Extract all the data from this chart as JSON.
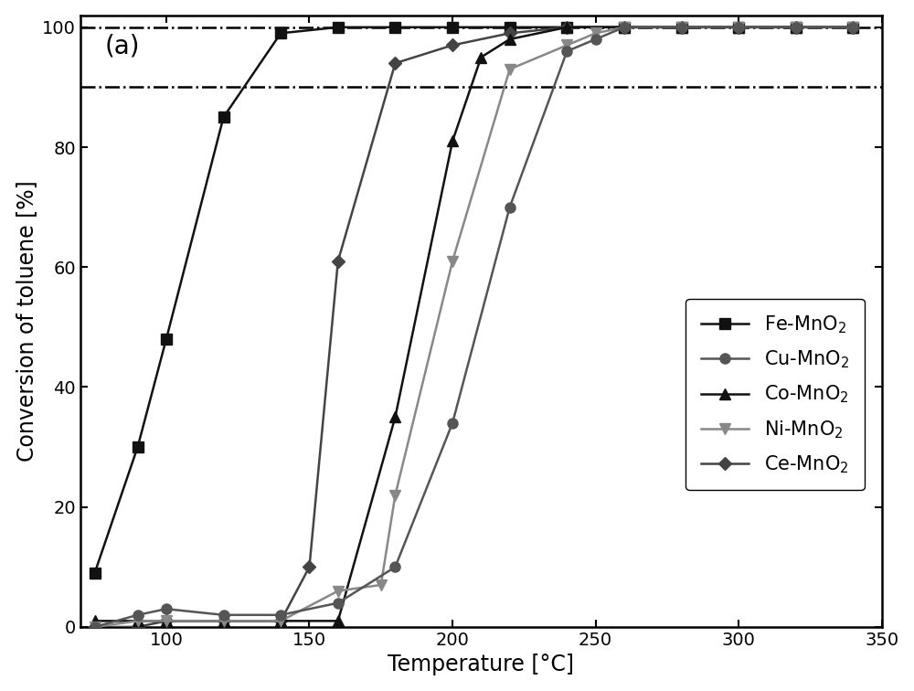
{
  "title_label": "(a)",
  "xlabel": "Temperature [°C]",
  "ylabel": "Conversion of toluene [%]",
  "xlim": [
    70,
    350
  ],
  "ylim": [
    0,
    102
  ],
  "xticks": [
    100,
    150,
    200,
    250,
    300,
    350
  ],
  "yticks": [
    0,
    20,
    40,
    60,
    80,
    100
  ],
  "hlines": [
    100,
    90
  ],
  "series": [
    {
      "label": "Fe-MnO$_2$",
      "color": "#111111",
      "marker": "s",
      "markersize": 8,
      "linewidth": 1.8,
      "x": [
        75,
        90,
        100,
        120,
        140,
        160,
        180,
        200,
        220,
        240,
        260,
        280,
        300,
        320,
        340
      ],
      "y": [
        9,
        30,
        48,
        85,
        99,
        100,
        100,
        100,
        100,
        100,
        100,
        100,
        100,
        100,
        100
      ]
    },
    {
      "label": "Ce-MnO$_2$",
      "color": "#444444",
      "marker": "D",
      "markersize": 7,
      "linewidth": 1.8,
      "x": [
        75,
        90,
        100,
        120,
        140,
        150,
        160,
        180,
        200,
        220,
        240,
        260,
        280,
        300,
        320,
        340
      ],
      "y": [
        0,
        0,
        1,
        1,
        1,
        10,
        61,
        94,
        97,
        99,
        100,
        100,
        100,
        100,
        100,
        100
      ]
    },
    {
      "label": "Co-MnO$_2$",
      "color": "#111111",
      "marker": "^",
      "markersize": 9,
      "linewidth": 1.8,
      "x": [
        75,
        90,
        100,
        120,
        140,
        160,
        180,
        200,
        210,
        220,
        240,
        260,
        280,
        300,
        320,
        340
      ],
      "y": [
        1,
        1,
        1,
        1,
        1,
        1,
        35,
        81,
        95,
        98,
        100,
        100,
        100,
        100,
        100,
        100
      ]
    },
    {
      "label": "Ni-MnO$_2$",
      "color": "#888888",
      "marker": "v",
      "markersize": 9,
      "linewidth": 1.8,
      "x": [
        75,
        90,
        100,
        120,
        140,
        160,
        175,
        180,
        200,
        220,
        240,
        250,
        260,
        280,
        300,
        320,
        340
      ],
      "y": [
        0,
        1,
        1,
        1,
        1,
        6,
        7,
        22,
        61,
        93,
        97,
        99,
        100,
        100,
        100,
        100,
        100
      ]
    },
    {
      "label": "Cu-MnO$_2$",
      "color": "#555555",
      "marker": "o",
      "markersize": 8,
      "linewidth": 1.8,
      "x": [
        75,
        90,
        100,
        120,
        140,
        160,
        180,
        200,
        220,
        240,
        250,
        260,
        280,
        300,
        320,
        340
      ],
      "y": [
        0,
        2,
        3,
        2,
        2,
        4,
        10,
        34,
        70,
        96,
        98,
        100,
        100,
        100,
        100,
        100
      ]
    }
  ],
  "legend_order": [
    "Fe-MnO$_2$",
    "Cu-MnO$_2$",
    "Co-MnO$_2$",
    "Ni-MnO$_2$",
    "Ce-MnO$_2$"
  ],
  "background_color": "#ffffff",
  "font_size": 15,
  "tick_font_size": 14,
  "label_font_size": 17
}
